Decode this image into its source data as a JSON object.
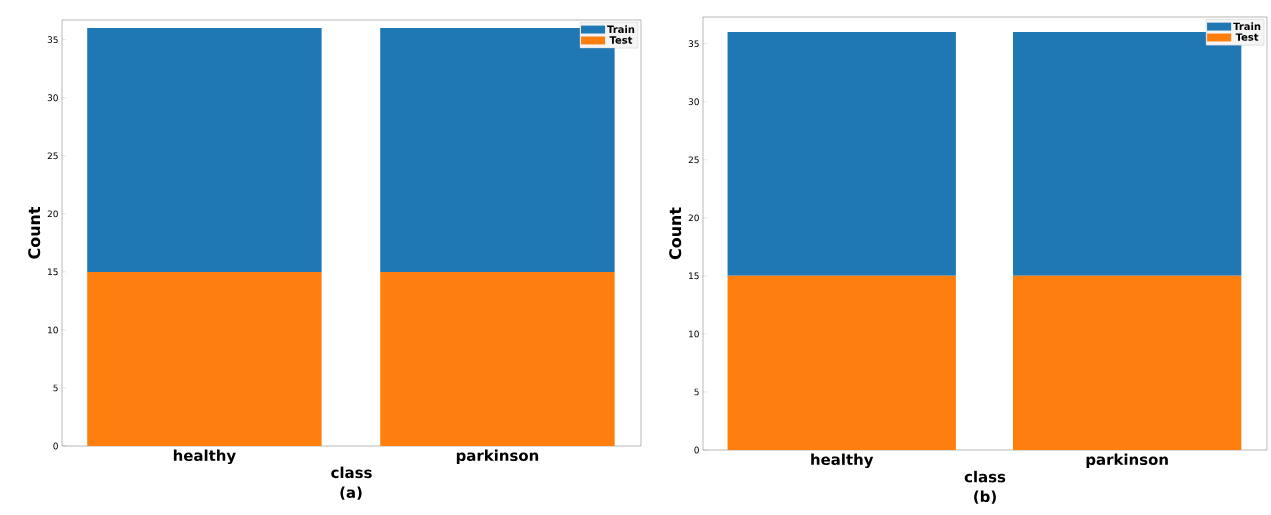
{
  "chart_data": [
    {
      "type": "bar",
      "stacked": true,
      "xlabel": "class",
      "ylabel": "Count",
      "categories": [
        "healthy",
        "parkinson"
      ],
      "series": [
        {
          "name": "Test",
          "color": "#ff7f0e",
          "values": [
            15,
            15
          ]
        },
        {
          "name": "Train",
          "color": "#1f77b4",
          "values": [
            21,
            21
          ]
        }
      ],
      "ylim": [
        0,
        36.7
      ],
      "yticks": [
        0,
        5,
        10,
        15,
        20,
        25,
        30,
        35
      ],
      "legend": "top right",
      "annotations": [
        "(a)"
      ]
    },
    {
      "type": "bar",
      "stacked": true,
      "xlabel": "class",
      "ylabel": "Count",
      "categories": [
        "healthy",
        "parkinson"
      ],
      "series": [
        {
          "name": "Test",
          "color": "#ff7f0e",
          "values": [
            15,
            15
          ]
        },
        {
          "name": "Train",
          "color": "#1f77b4",
          "values": [
            21,
            21
          ]
        }
      ],
      "ylim": [
        0,
        37.3
      ],
      "yticks": [
        0,
        5,
        10,
        15,
        20,
        25,
        30,
        35
      ],
      "legend": "top right",
      "annotations": [
        "(b)"
      ]
    }
  ]
}
